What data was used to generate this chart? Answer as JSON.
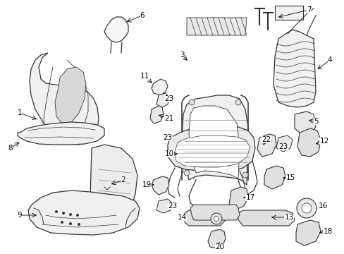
{
  "bg_color": "#ffffff",
  "line_color": "#333333",
  "label_color": "#000000",
  "figsize": [
    4.89,
    3.6
  ],
  "dpi": 100,
  "label_fs": 7.0,
  "lw": 0.9
}
